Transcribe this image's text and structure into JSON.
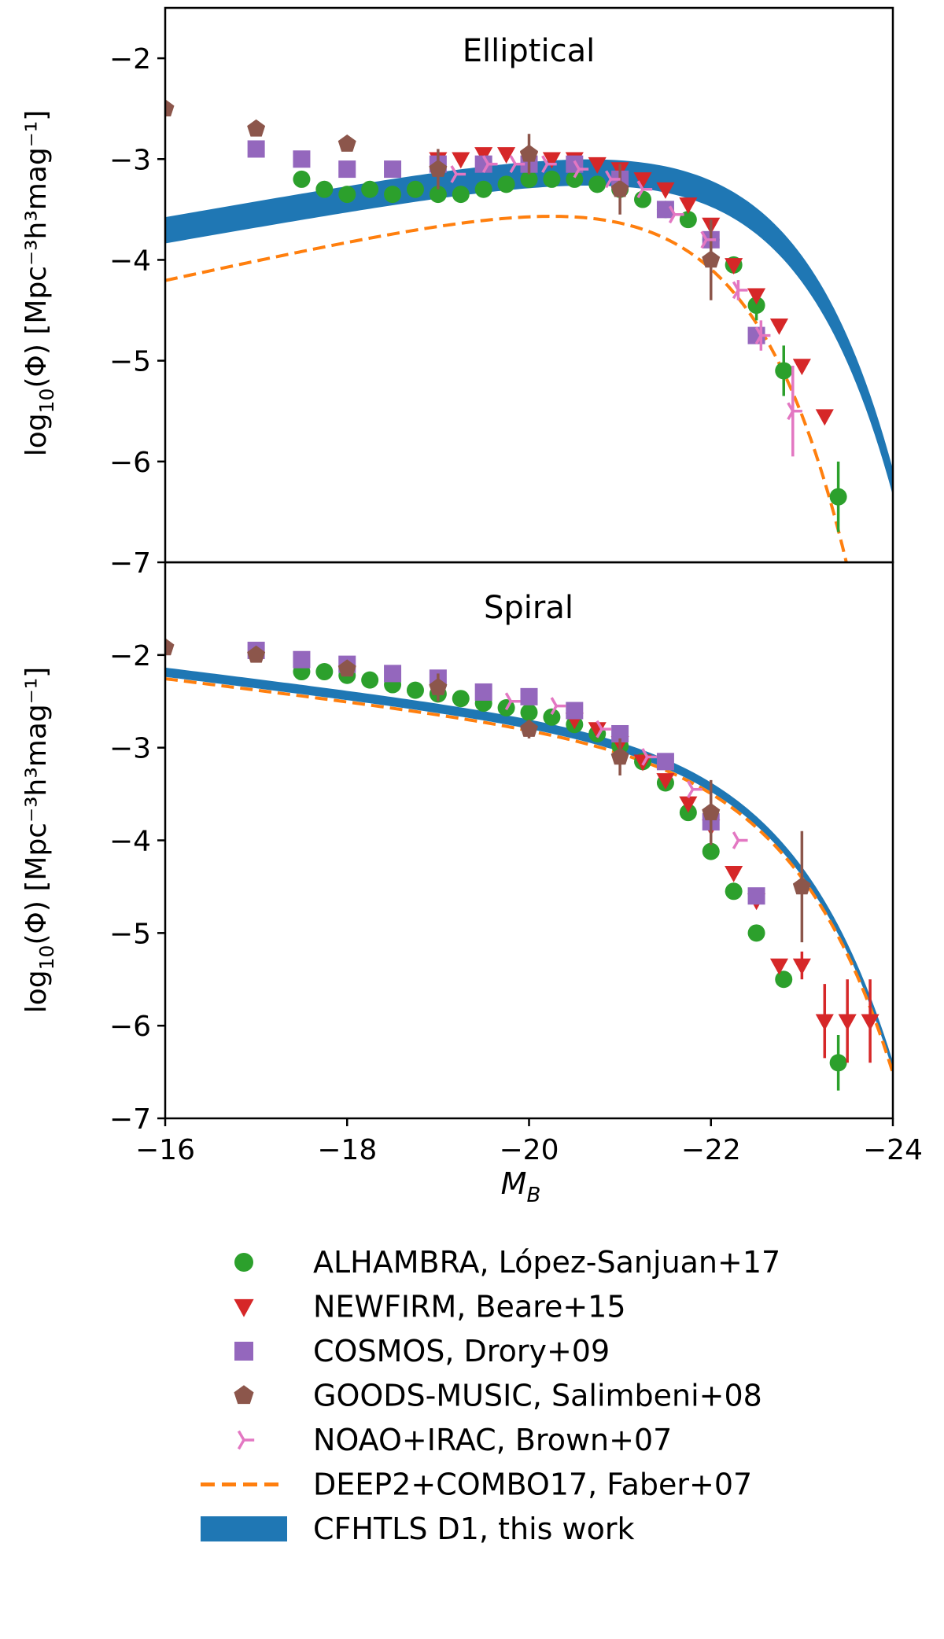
{
  "chart_data": {
    "type": "scatter",
    "x_axis": {
      "label": "M",
      "label_sub": "B",
      "lim": [
        -16,
        -24
      ],
      "ticks": [
        -16,
        -18,
        -20,
        -22,
        -24
      ],
      "tick_labels": [
        "−16",
        "−18",
        "−20",
        "−22",
        "−24"
      ]
    },
    "y_axis": {
      "label_prefix": "log",
      "label_sub": "10",
      "label_main": "(Φ) [Mpc⁻³h³mag⁻¹]"
    },
    "panels": [
      {
        "title": "Elliptical",
        "ylim": [
          -7,
          -1.5
        ],
        "yticks": [
          -2,
          -3,
          -4,
          -5,
          -6,
          -7
        ],
        "ytick_labels": [
          "−2",
          "−3",
          "−4",
          "−5",
          "−6",
          "−7"
        ],
        "series": [
          {
            "name": "ALHAMBRA",
            "marker": "circle",
            "color": "#2ca02c",
            "x": [
              -17.5,
              -17.75,
              -18.0,
              -18.25,
              -18.5,
              -18.75,
              -19.0,
              -19.25,
              -19.5,
              -19.75,
              -20.0,
              -20.25,
              -20.5,
              -20.75,
              -21.0,
              -21.25,
              -21.5,
              -21.75,
              -22.0,
              -22.25,
              -22.5,
              -22.8,
              -23.4
            ],
            "y": [
              -3.2,
              -3.3,
              -3.35,
              -3.3,
              -3.35,
              -3.3,
              -3.35,
              -3.35,
              -3.3,
              -3.25,
              -3.2,
              -3.2,
              -3.2,
              -3.25,
              -3.3,
              -3.4,
              -3.5,
              -3.6,
              -3.8,
              -4.05,
              -4.45,
              -5.1,
              -6.35
            ],
            "err": [
              0,
              0,
              0,
              0,
              0,
              0,
              0,
              0,
              0,
              0,
              0,
              0,
              0,
              0,
              0,
              0,
              0,
              0,
              0,
              0,
              0.15,
              0.25,
              0.35
            ]
          },
          {
            "name": "NEWFIRM",
            "marker": "triangle-down",
            "color": "#d62728",
            "x": [
              -19.0,
              -19.25,
              -19.5,
              -19.75,
              -20.0,
              -20.25,
              -20.5,
              -20.75,
              -21.0,
              -21.25,
              -21.5,
              -21.75,
              -22.0,
              -22.25,
              -22.5,
              -22.75,
              -23.0,
              -23.25
            ],
            "y": [
              -3.0,
              -3.0,
              -2.95,
              -2.95,
              -3.0,
              -3.0,
              -3.0,
              -3.05,
              -3.1,
              -3.2,
              -3.3,
              -3.45,
              -3.65,
              -4.05,
              -4.35,
              -4.65,
              -5.05,
              -5.55
            ],
            "err": [
              0,
              0,
              0,
              0,
              0,
              0,
              0,
              0,
              0,
              0,
              0,
              0,
              0,
              0,
              0,
              0,
              0,
              0
            ]
          },
          {
            "name": "COSMOS",
            "marker": "square",
            "color": "#9467bd",
            "x": [
              -17.0,
              -17.5,
              -18.0,
              -18.5,
              -19.0,
              -19.5,
              -20.0,
              -20.5,
              -21.0,
              -21.5,
              -22.0,
              -22.5
            ],
            "y": [
              -2.9,
              -3.0,
              -3.1,
              -3.1,
              -3.05,
              -3.05,
              -3.05,
              -3.05,
              -3.2,
              -3.5,
              -3.8,
              -4.75
            ],
            "err": [
              0,
              0,
              0,
              0,
              0,
              0,
              0,
              0,
              0,
              0,
              0,
              0
            ]
          },
          {
            "name": "GOODS-MUSIC",
            "marker": "pentagon",
            "color": "#8c564b",
            "x": [
              -16.0,
              -17.0,
              -18.0,
              -19.0,
              -20.0,
              -21.0,
              -22.0
            ],
            "y": [
              -2.5,
              -2.7,
              -2.85,
              -3.1,
              -2.95,
              -3.3,
              -4.0
            ],
            "err": [
              0,
              0,
              0,
              0.2,
              0.2,
              0.25,
              0.4
            ]
          },
          {
            "name": "NOAO+IRAC",
            "marker": "tri-right",
            "color": "#e377c2",
            "x": [
              -19.2,
              -19.55,
              -19.85,
              -20.2,
              -20.55,
              -20.9,
              -21.25,
              -21.6,
              -21.95,
              -22.3,
              -22.55,
              -22.9
            ],
            "y": [
              -3.15,
              -3.05,
              -3.05,
              -3.05,
              -3.1,
              -3.2,
              -3.3,
              -3.55,
              -3.8,
              -4.3,
              -4.75,
              -5.5
            ],
            "err": [
              0,
              0,
              0,
              0,
              0,
              0,
              0,
              0,
              0,
              0.1,
              0.15,
              0.45
            ]
          }
        ],
        "faber_curve": {
          "phi_star": -3.2,
          "m_star": -21.0,
          "alpha": -0.5
        },
        "band_curve": {
          "phi_star": -2.8,
          "m_star": -21.65,
          "alpha": -0.6,
          "half_width": 0.13
        }
      },
      {
        "title": "Spiral",
        "ylim": [
          -7,
          -1.0
        ],
        "yticks": [
          -2,
          -3,
          -4,
          -5,
          -6,
          -7
        ],
        "ytick_labels": [
          "−2",
          "−3",
          "−4",
          "−5",
          "−6",
          "−7"
        ],
        "series": [
          {
            "name": "ALHAMBRA",
            "marker": "circle",
            "color": "#2ca02c",
            "x": [
              -17.5,
              -17.75,
              -18.0,
              -18.25,
              -18.5,
              -18.75,
              -19.0,
              -19.25,
              -19.5,
              -19.75,
              -20.0,
              -20.25,
              -20.5,
              -20.75,
              -21.0,
              -21.25,
              -21.5,
              -21.75,
              -22.0,
              -22.25,
              -22.5,
              -22.8,
              -23.4
            ],
            "y": [
              -2.18,
              -2.18,
              -2.22,
              -2.27,
              -2.32,
              -2.38,
              -2.42,
              -2.47,
              -2.52,
              -2.57,
              -2.62,
              -2.67,
              -2.75,
              -2.85,
              -2.98,
              -3.15,
              -3.38,
              -3.7,
              -4.12,
              -4.55,
              -5.0,
              -5.5,
              -6.4
            ],
            "err": [
              0,
              0,
              0,
              0,
              0,
              0,
              0,
              0,
              0,
              0,
              0,
              0,
              0,
              0,
              0,
              0,
              0,
              0,
              0,
              0,
              0,
              0,
              0.3
            ]
          },
          {
            "name": "NEWFIRM",
            "marker": "triangle-down",
            "color": "#d62728",
            "x": [
              -20.5,
              -20.75,
              -21.0,
              -21.25,
              -21.5,
              -21.75,
              -22.0,
              -22.25,
              -22.5,
              -22.75,
              -23.0,
              -23.25,
              -23.5,
              -23.75
            ],
            "y": [
              -2.7,
              -2.8,
              -2.95,
              -3.15,
              -3.35,
              -3.6,
              -3.85,
              -4.35,
              -4.65,
              -5.35,
              -5.35,
              -5.95,
              -5.95,
              -5.95
            ],
            "err": [
              0,
              0,
              0,
              0,
              0,
              0,
              0,
              0,
              0,
              0,
              0.15,
              0.4,
              0.45,
              0.45
            ]
          },
          {
            "name": "COSMOS",
            "marker": "square",
            "color": "#9467bd",
            "x": [
              -17.0,
              -17.5,
              -18.0,
              -18.5,
              -19.0,
              -19.5,
              -20.0,
              -20.5,
              -21.0,
              -21.5,
              -22.0,
              -22.5
            ],
            "y": [
              -1.95,
              -2.05,
              -2.1,
              -2.2,
              -2.25,
              -2.4,
              -2.45,
              -2.6,
              -2.85,
              -3.15,
              -3.8,
              -4.6
            ],
            "err": [
              0,
              0,
              0,
              0,
              0,
              0,
              0,
              0,
              0,
              0,
              0,
              0
            ]
          },
          {
            "name": "GOODS-MUSIC",
            "marker": "pentagon",
            "color": "#8c564b",
            "x": [
              -16.0,
              -17.0,
              -18.0,
              -19.0,
              -20.0,
              -21.0,
              -22.0,
              -23.0
            ],
            "y": [
              -1.92,
              -2.0,
              -2.15,
              -2.35,
              -2.8,
              -3.1,
              -3.7,
              -4.5
            ],
            "err": [
              0,
              0,
              0,
              0.15,
              0.1,
              0.2,
              0.35,
              0.6
            ]
          },
          {
            "name": "NOAO+IRAC",
            "marker": "tri-right",
            "color": "#e377c2",
            "x": [
              -19.8,
              -20.3,
              -20.8,
              -21.3,
              -21.8,
              -22.3
            ],
            "y": [
              -2.5,
              -2.55,
              -2.8,
              -3.1,
              -3.45,
              -4.0
            ],
            "err": [
              0,
              0,
              0,
              0,
              0,
              0
            ]
          }
        ],
        "faber_curve": {
          "phi_star": -2.95,
          "m_star": -21.8,
          "alpha": -1.3
        },
        "band_curve": {
          "phi_star": -2.88,
          "m_star": -21.8,
          "alpha": -1.3,
          "half_width": 0.05
        }
      }
    ],
    "legend": {
      "position": "below",
      "entries": [
        {
          "label": "ALHAMBRA, López-Sanjuan+17",
          "marker": "circle",
          "color": "#2ca02c"
        },
        {
          "label": "NEWFIRM, Beare+15",
          "marker": "triangle-down",
          "color": "#d62728"
        },
        {
          "label": "COSMOS, Drory+09",
          "marker": "square",
          "color": "#9467bd"
        },
        {
          "label": "GOODS-MUSIC, Salimbeni+08",
          "marker": "pentagon",
          "color": "#8c564b"
        },
        {
          "label": "NOAO+IRAC, Brown+07",
          "marker": "tri-right",
          "color": "#e377c2"
        },
        {
          "label": "DEEP2+COMBO17, Faber+07",
          "marker": "dashed-line",
          "color": "#ff7f0e"
        },
        {
          "label": "CFHTLS D1, this work",
          "marker": "band",
          "color": "#1f77b4"
        }
      ]
    }
  }
}
